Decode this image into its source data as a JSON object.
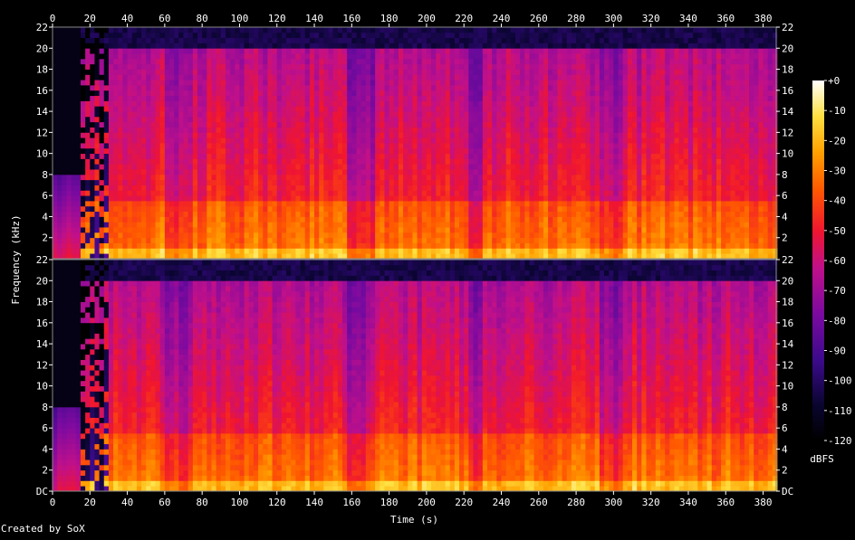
{
  "chart_data": {
    "type": "heatmap",
    "title": "",
    "xlabel": "Time (s)",
    "ylabel": "Frequency (kHz)",
    "xlim": [
      0,
      387
    ],
    "x_ticks": [
      "0",
      "20",
      "40",
      "60",
      "80",
      "100",
      "120",
      "140",
      "160",
      "180",
      "200",
      "220",
      "240",
      "260",
      "280",
      "300",
      "320",
      "340",
      "360",
      "380"
    ],
    "channels": [
      {
        "name": "",
        "ylim": [
          0,
          22
        ],
        "y_ticks": [
          "2",
          "4",
          "6",
          "8",
          "10",
          "12",
          "14",
          "16",
          "18",
          "20",
          "22"
        ]
      },
      {
        "name": "",
        "ylim": [
          0,
          22
        ],
        "y_ticks": [
          "DC",
          "2",
          "4",
          "6",
          "8",
          "10",
          "12",
          "14",
          "16",
          "18",
          "20",
          "22"
        ]
      }
    ],
    "colorbar": {
      "label": "dBFS",
      "ticks": [
        "+0",
        "-10",
        "-20",
        "-30",
        "-40",
        "-50",
        "-60",
        "-70",
        "-80",
        "-90",
        "-100",
        "-110",
        "-120"
      ],
      "range": [
        -120,
        0
      ]
    },
    "spectral_cutoff_khz": 20,
    "silent_intro_end_s": 14,
    "quiet_regions_s": [
      [
        60,
        73
      ],
      [
        157,
        172
      ],
      [
        222,
        229
      ],
      [
        291,
        303
      ]
    ]
  },
  "footer": {
    "credit": "Created by SoX"
  }
}
